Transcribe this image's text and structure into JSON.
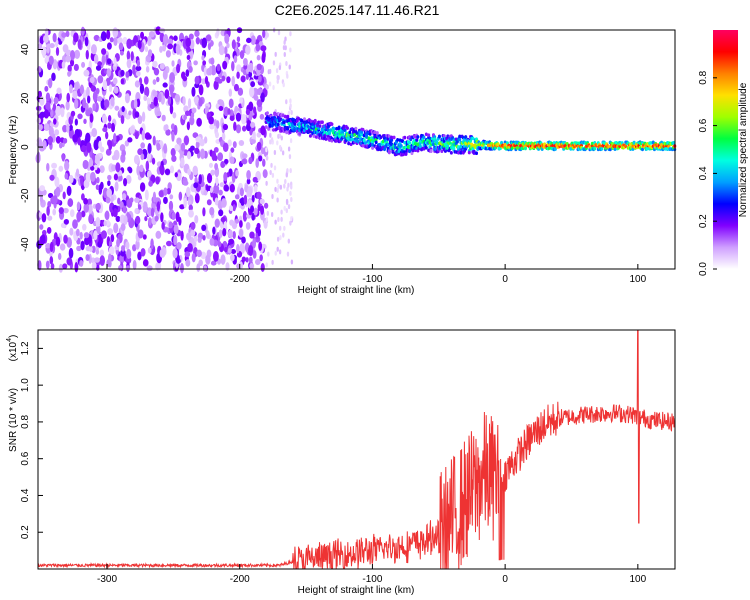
{
  "figure": {
    "title": "C2E6.2025.147.11.46.R21"
  },
  "chart_data": [
    {
      "type": "heatmap",
      "xlabel": "Height of straight line (km)",
      "ylabel": "Frequency (Hz)",
      "xlim": [
        -352,
        128
      ],
      "ylim": [
        -50,
        48
      ],
      "xticks": [
        -300,
        -200,
        -100,
        0,
        100
      ],
      "yticks": [
        -40,
        -20,
        0,
        20,
        40
      ],
      "grid": false,
      "colorbar": {
        "label": "Normalized spectral amplitude",
        "range": [
          0.0,
          1.0
        ],
        "ticks": [
          "0.0",
          "0.2",
          "0.4",
          "0.6",
          "0.8"
        ],
        "colormap": [
          "#ffffff",
          "#cf9fff",
          "#8000ff",
          "#0000ff",
          "#00a0ff",
          "#00ffe0",
          "#00ff40",
          "#a0ff00",
          "#ffe000",
          "#ff8000",
          "#ff0000",
          "#ff0060"
        ]
      },
      "regions": [
        {
          "feature": "broadband noise",
          "x": [
            -352,
            -180
          ],
          "y": [
            -50,
            48
          ],
          "amplitude": 0.12
        },
        {
          "feature": "sparse noise edge",
          "x": [
            -180,
            -160
          ],
          "y": [
            -50,
            48
          ],
          "amplitude": 0.05
        },
        {
          "feature": "spectral line",
          "ridge": [
            [
              -180,
              11
            ],
            [
              -150,
              8
            ],
            [
              -120,
              5
            ],
            [
              -100,
              3
            ],
            [
              -80,
              0
            ],
            [
              -60,
              2
            ],
            [
              -40,
              1
            ],
            [
              -25,
              1
            ],
            [
              0,
              0.5
            ],
            [
              128,
              0.5
            ]
          ],
          "amplitude": [
            [
              -180,
              0.35
            ],
            [
              -120,
              0.5
            ],
            [
              -60,
              0.5
            ],
            [
              -30,
              0.6
            ],
            [
              0,
              0.95
            ],
            [
              128,
              0.95
            ]
          ]
        }
      ]
    },
    {
      "type": "line",
      "xlabel": "Height of straight line (km)",
      "ylabel": "SNR (10 * v/v)",
      "y_multiplier": "(x10",
      "y_exponent": "4",
      "xlim": [
        -352,
        128
      ],
      "ylim": [
        0,
        1.3
      ],
      "xticks": [
        -300,
        -200,
        -100,
        0,
        100
      ],
      "yticks": [
        0.2,
        0.4,
        0.6,
        0.8,
        1.0,
        1.2
      ],
      "grid": false,
      "series": [
        {
          "color": "#ee3333",
          "x": [
            -352,
            -300,
            -250,
            -200,
            -170,
            -160,
            -140,
            -120,
            -100,
            -80,
            -60,
            -45,
            -35,
            -25,
            -15,
            -10,
            0,
            10,
            20,
            30,
            40,
            60,
            80,
            95,
            100,
            105,
            110,
            128
          ],
          "y": [
            0.02,
            0.02,
            0.02,
            0.02,
            0.02,
            0.04,
            0.06,
            0.08,
            0.1,
            0.12,
            0.15,
            0.22,
            0.32,
            0.42,
            0.52,
            0.5,
            0.52,
            0.62,
            0.72,
            0.79,
            0.82,
            0.84,
            0.85,
            0.84,
            0.83,
            0.82,
            0.81,
            0.8
          ]
        }
      ]
    }
  ]
}
